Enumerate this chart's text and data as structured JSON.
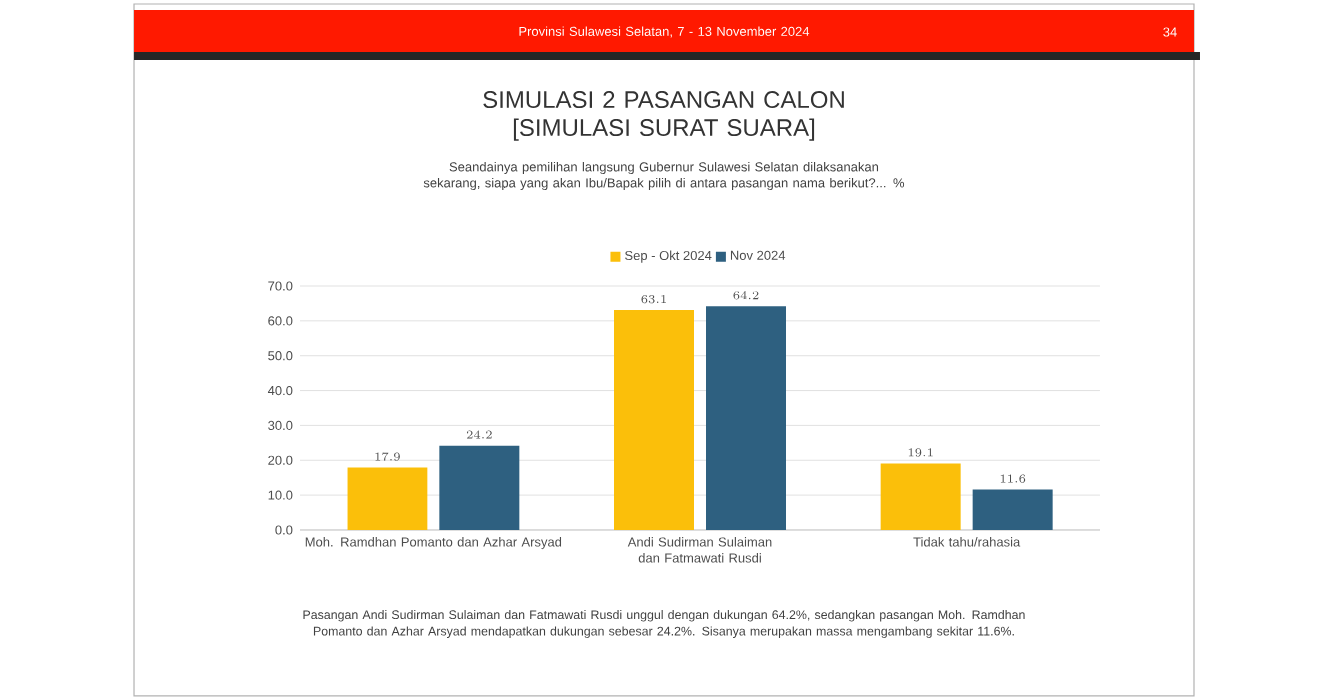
{
  "chart_data": {
    "type": "bar",
    "title": "SIMULASI 2 PASANGAN CALON [SIMULASI SURAT SUARA]",
    "subtitle": "Seandainya pemilihan langsung Gubernur Sulawesi Selatan dilaksanakan sekarang, siapa yang akan Ibu/Bapak pilih di antara pasangan nama berikut?... %",
    "categories": [
      "Moh. Ramdhan Pomanto dan Azhar Arsyad",
      "Andi Sudirman Sulaiman dan Fatmawati Rusdi",
      "Tidak tahu/rahasia"
    ],
    "series": [
      {
        "name": "Sep - Okt 2024",
        "color": "#fbbf0a",
        "values": [
          17.9,
          63.1,
          19.1
        ]
      },
      {
        "name": "Nov 2024",
        "color": "#2e6080",
        "values": [
          24.2,
          64.2,
          11.6
        ]
      }
    ],
    "ylim": [
      0,
      70
    ],
    "yticks": [
      {
        "value": 0,
        "label": "0.0"
      },
      {
        "value": 10,
        "label": "10.0"
      },
      {
        "value": 20,
        "label": "20.0"
      },
      {
        "value": 30,
        "label": "30.0"
      },
      {
        "value": 40,
        "label": "40.0"
      },
      {
        "value": 50,
        "label": "50.0"
      },
      {
        "value": 60,
        "label": "60.0"
      },
      {
        "value": 70,
        "label": "70.0"
      }
    ],
    "grid": "y",
    "legend": "top",
    "data_labels": true,
    "annotations": [
      "Provinsi Sulawesi Selatan, 7 - 13 November 2024",
      "34",
      "Pasangan Andi Sudirman Sulaiman dan Fatmawati Rusdi unggul dengan dukungan 64.2%, sedangkan pasangan Moh. Ramdhan Pomanto dan Azhar Arsyad mendapatkan dukungan sebesar 24.2%. Sisanya merupakan massa mengambang sekitar 11.6%."
    ]
  }
}
